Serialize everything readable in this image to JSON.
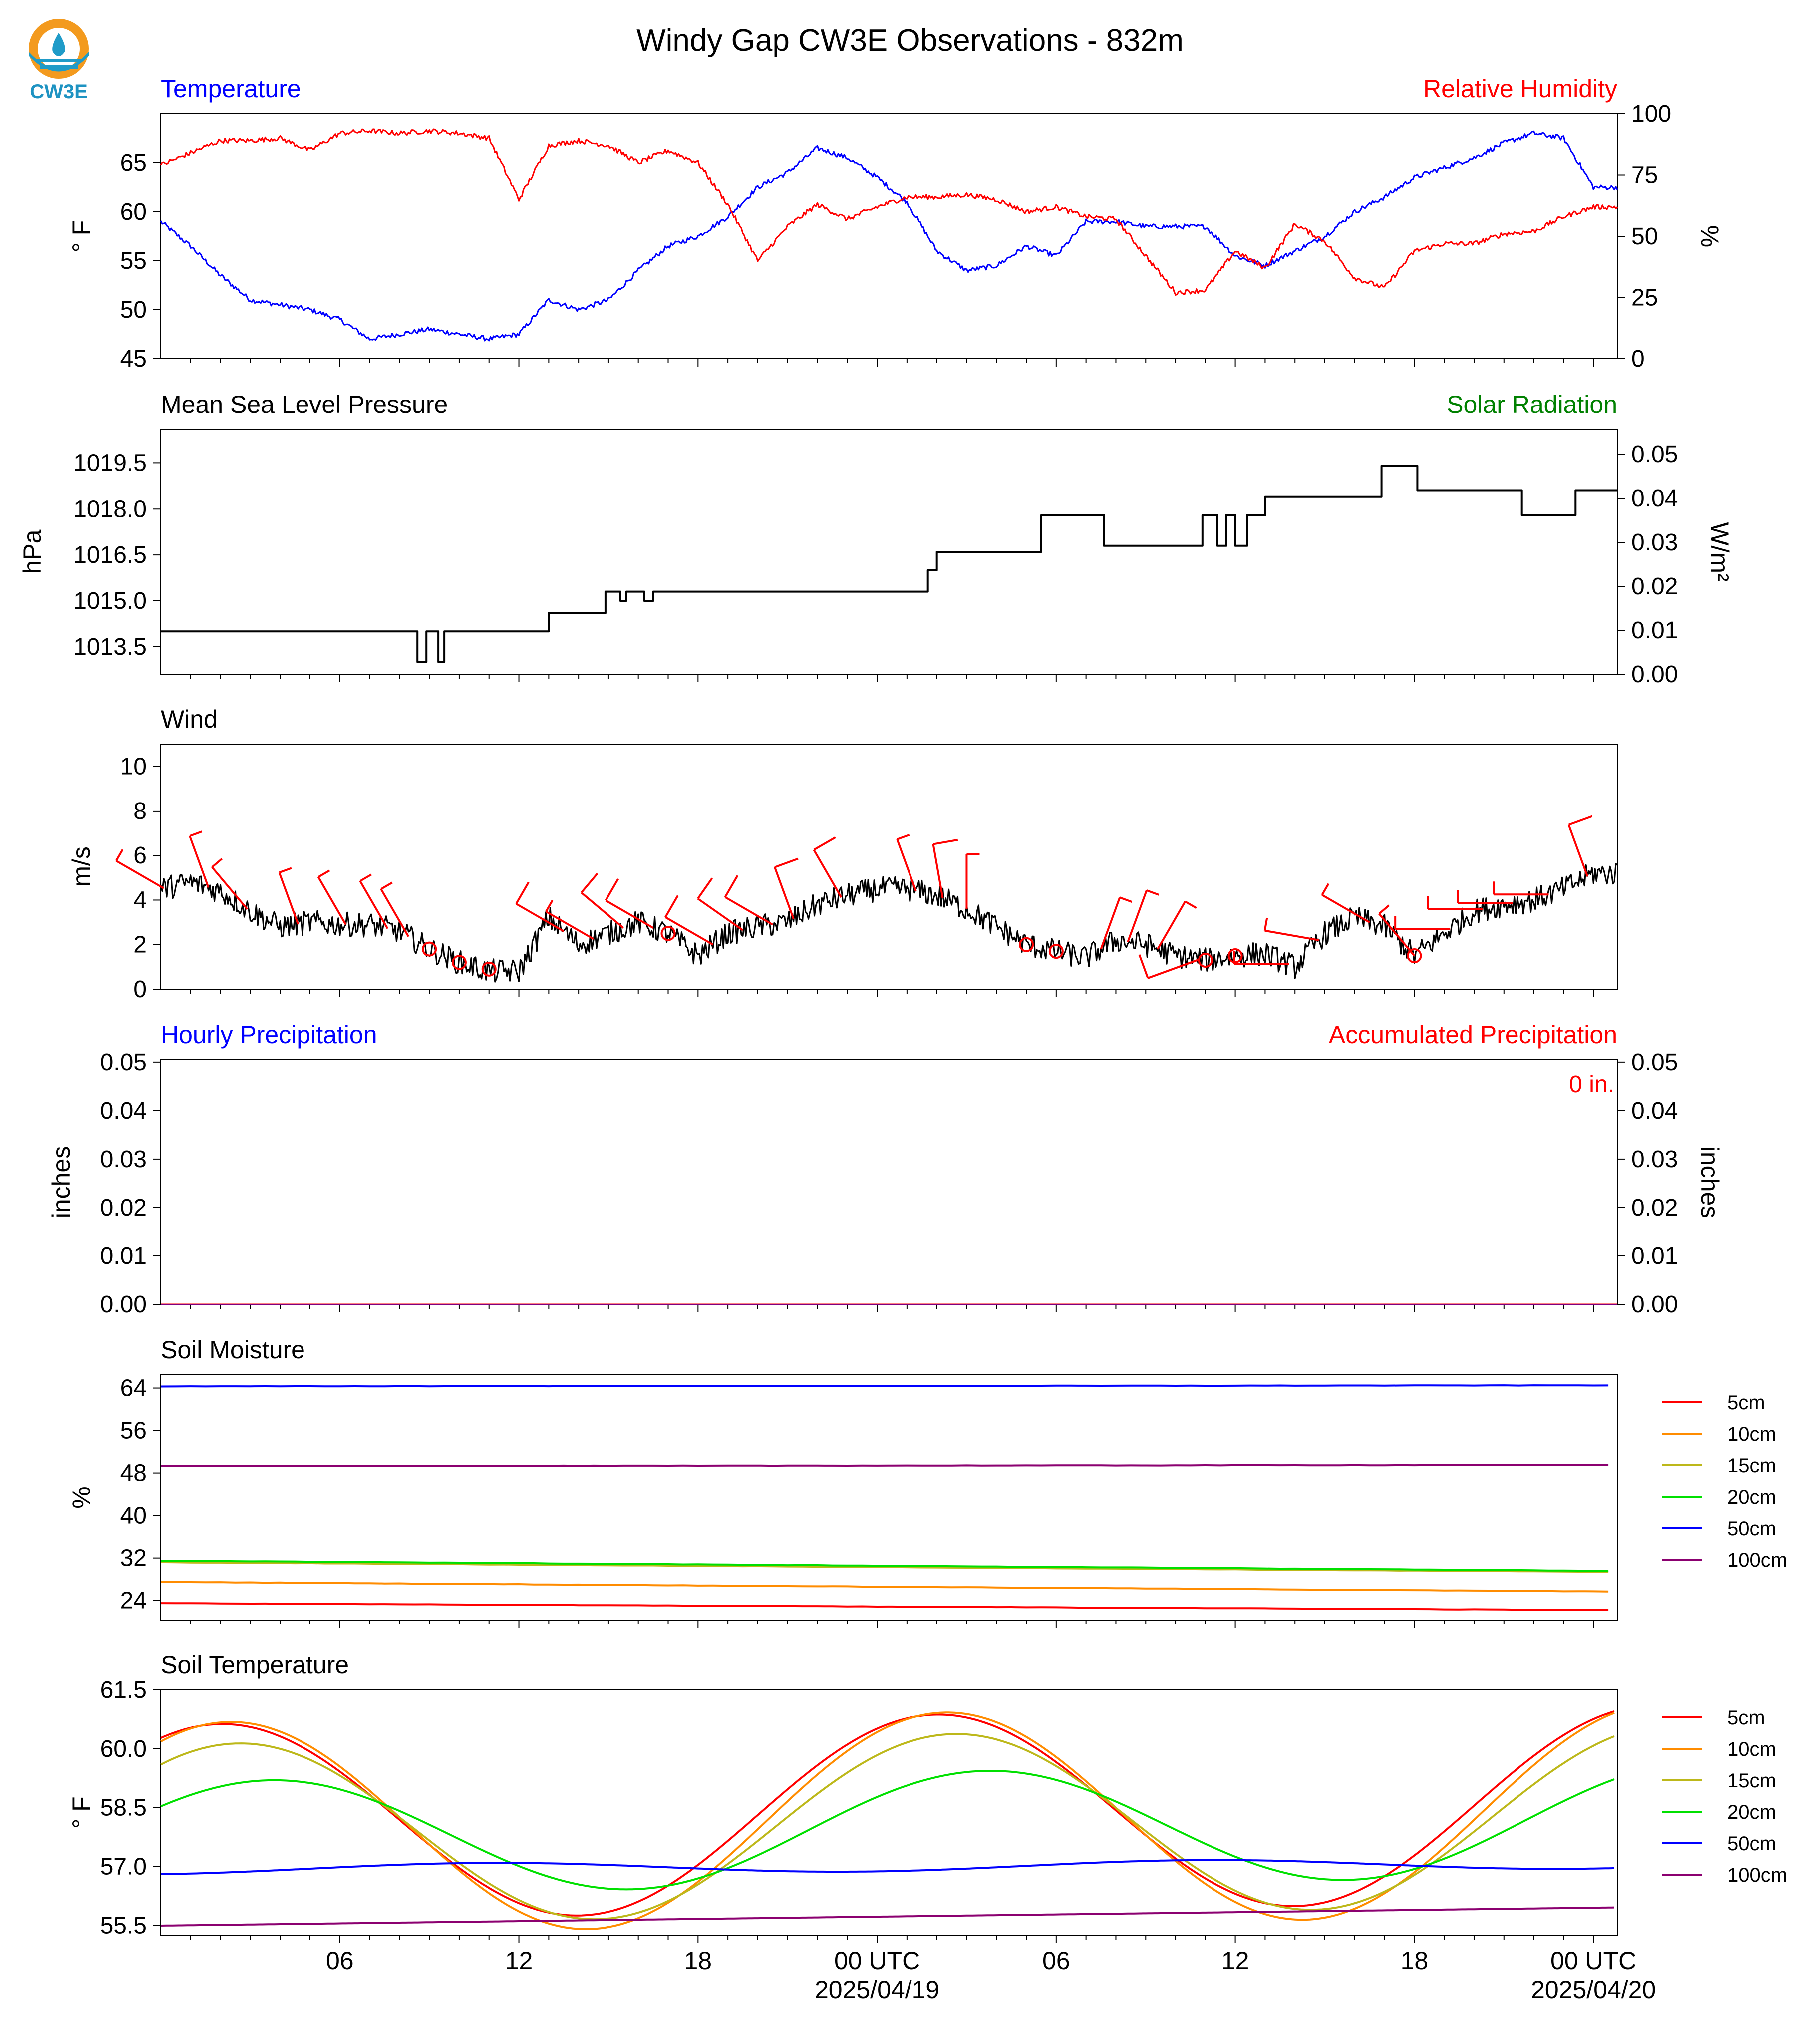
{
  "title": "Windy Gap CW3E Observations - 832m",
  "logo": {
    "text": "CW3E",
    "colors": {
      "ring": "#f39a1e",
      "water": "#1f9bc8",
      "text": "#1e93c2"
    }
  },
  "colors": {
    "blue": "#0000ff",
    "red": "#ff0000",
    "green": "#008000",
    "black": "#000000",
    "axis": "#000000"
  },
  "x_axis": {
    "ticks": [
      {
        "label": "06",
        "sublabel": ""
      },
      {
        "label": "12",
        "sublabel": ""
      },
      {
        "label": "18",
        "sublabel": ""
      },
      {
        "label": "00 UTC",
        "sublabel": "2025/04/19"
      },
      {
        "label": "06",
        "sublabel": ""
      },
      {
        "label": "12",
        "sublabel": ""
      },
      {
        "label": "18",
        "sublabel": ""
      },
      {
        "label": "00 UTC",
        "sublabel": "2025/04/20"
      }
    ]
  },
  "chart_data": [
    {
      "id": "temperature",
      "type": "line",
      "title_left": "Temperature",
      "title_right": "Relative Humidity",
      "ylabel": "° F",
      "ylabel_right": "%",
      "ylim": [
        45,
        70
      ],
      "ylim_right": [
        0,
        100
      ],
      "yticks": [
        45,
        50,
        55,
        60,
        65
      ],
      "yticks_right": [
        0,
        25,
        50,
        75,
        100
      ],
      "x_hours": [
        1,
        2,
        3,
        4,
        5,
        6,
        7,
        8,
        9,
        10,
        11,
        12,
        13,
        14,
        15,
        16,
        17,
        18,
        19,
        20,
        21,
        22,
        23,
        24,
        25,
        26,
        27,
        28,
        29,
        30,
        31,
        32,
        33,
        34,
        35,
        36,
        37,
        38,
        39,
        40,
        41,
        42,
        43,
        44,
        45,
        46,
        47,
        48,
        49
      ],
      "series": [
        {
          "name": "Temperature",
          "axis": "left",
          "color": "#0000ff",
          "values": [
            59,
            56.5,
            53.5,
            51,
            50.5,
            50,
            49,
            47,
            47.5,
            48,
            47.5,
            47,
            47.5,
            51,
            50,
            51,
            54,
            56.5,
            57.5,
            59.5,
            62.5,
            64,
            66.5,
            65.5,
            63.5,
            61,
            56,
            54,
            54.5,
            56.5,
            55.5,
            59,
            59,
            58.5,
            58.5,
            58.5,
            55.5,
            54.5,
            56,
            57.5,
            60,
            61.5,
            63.5,
            64.5,
            65.5,
            67,
            68,
            67.5,
            62.5
          ]
        },
        {
          "name": "Relative Humidity",
          "axis": "right",
          "color": "#ff0000",
          "values": [
            79,
            84,
            89,
            89,
            90,
            85,
            92,
            93,
            92,
            93,
            92,
            90,
            65,
            87,
            89,
            87,
            80,
            85,
            80,
            63,
            40,
            54,
            63,
            57,
            62,
            66,
            66,
            67,
            65,
            60,
            62,
            58,
            57,
            42,
            27,
            28,
            44,
            37,
            55,
            48,
            33,
            29,
            44,
            47,
            47,
            51,
            52,
            58,
            62
          ]
        }
      ]
    },
    {
      "id": "pressure",
      "type": "line",
      "title_left": "Mean Sea Level Pressure",
      "title_right": "Solar Radiation",
      "ylabel": "hPa",
      "ylabel_right": "W/m²",
      "ylim": [
        1012.6,
        1020.6
      ],
      "ylim_right": [
        0,
        0.0557
      ],
      "yticks": [
        1013.5,
        1015.0,
        1016.5,
        1018.0,
        1019.5
      ],
      "yticks_right": [
        0.0,
        0.01,
        0.02,
        0.03,
        0.04,
        0.05
      ],
      "series": [
        {
          "name": "Mean Sea Level Pressure",
          "axis": "left",
          "color": "#000000",
          "steps": [
            [
              0,
              1014.0
            ],
            [
              8.6,
              1013.0
            ],
            [
              8.9,
              1014.0
            ],
            [
              9.3,
              1013.0
            ],
            [
              9.5,
              1014.0
            ],
            [
              13,
              1014.6
            ],
            [
              14.9,
              1015.3
            ],
            [
              15.4,
              1015.0
            ],
            [
              15.6,
              1015.3
            ],
            [
              16.2,
              1015.0
            ],
            [
              16.5,
              1015.3
            ],
            [
              25.7,
              1016.0
            ],
            [
              26.0,
              1016.6
            ],
            [
              29.5,
              1017.8
            ],
            [
              31.6,
              1016.8
            ],
            [
              34.9,
              1017.8
            ],
            [
              35.4,
              1016.8
            ],
            [
              35.7,
              1017.8
            ],
            [
              36.0,
              1016.8
            ],
            [
              36.4,
              1017.8
            ],
            [
              37.0,
              1018.4
            ],
            [
              40.9,
              1019.4
            ],
            [
              42.1,
              1018.6
            ],
            [
              45.6,
              1017.8
            ],
            [
              47.4,
              1018.6
            ],
            [
              48.2,
              1018.6
            ]
          ]
        }
      ]
    },
    {
      "id": "wind",
      "type": "line",
      "title_left": "Wind",
      "ylabel": "m/s",
      "ylim": [
        0,
        11
      ],
      "yticks": [
        0,
        2,
        4,
        6,
        8,
        10
      ],
      "x_hours": [
        0,
        1,
        2,
        3,
        4,
        5,
        6,
        7,
        8,
        9,
        10,
        11,
        12,
        13,
        14,
        15,
        16,
        17,
        18,
        19,
        20,
        21,
        22,
        23,
        24,
        25,
        26,
        27,
        28,
        29,
        30,
        31,
        32,
        33,
        34,
        35,
        36,
        37,
        38,
        39,
        40,
        41,
        42,
        43,
        44,
        45,
        46,
        47,
        48
      ],
      "series": [
        {
          "name": "Wind speed",
          "color": "#000000",
          "values": [
            4.5,
            4.8,
            4.4,
            3.5,
            2.8,
            3.0,
            2.9,
            2.9,
            2.6,
            1.8,
            1.2,
            0.8,
            0.8,
            3.2,
            2.0,
            2.5,
            3.0,
            2.5,
            1.5,
            2.5,
            2.8,
            3.0,
            3.8,
            4.2,
            4.5,
            4.5,
            4.2,
            3.6,
            2.8,
            2.0,
            1.7,
            1.4,
            2.2,
            2.0,
            1.5,
            1.3,
            1.5,
            1.6,
            1.0,
            2.5,
            3.2,
            2.8,
            1.5,
            2.5,
            3.5,
            3.8,
            4.0,
            4.5,
            5.2
          ]
        }
      ],
      "barbs": {
        "color": "#ff0000",
        "calm_hours": [
          9,
          10,
          11,
          17,
          29,
          30,
          35,
          36,
          42
        ],
        "flags": [
          {
            "hour": 0.1,
            "speed": 5,
            "dir": 300
          },
          {
            "hour": 1.6,
            "speed": 5,
            "dir": 340
          },
          {
            "hour": 2.9,
            "speed": 5,
            "dir": 320
          },
          {
            "hour": 4.6,
            "speed": 5,
            "dir": 340
          },
          {
            "hour": 6.2,
            "speed": 5,
            "dir": 330
          },
          {
            "hour": 7.6,
            "speed": 5,
            "dir": 330
          },
          {
            "hour": 8.3,
            "speed": 5,
            "dir": 330
          },
          {
            "hour": 13.5,
            "speed": 10,
            "dir": 300
          },
          {
            "hour": 14.5,
            "speed": 5,
            "dir": 300
          },
          {
            "hour": 15.5,
            "speed": 10,
            "dir": 310
          },
          {
            "hour": 16.5,
            "speed": 10,
            "dir": 300
          },
          {
            "hour": 18.5,
            "speed": 10,
            "dir": 300
          },
          {
            "hour": 19.5,
            "speed": 10,
            "dir": 305
          },
          {
            "hour": 20.5,
            "speed": 10,
            "dir": 300
          },
          {
            "hour": 21.2,
            "speed": 10,
            "dir": 340
          },
          {
            "hour": 22.8,
            "speed": 10,
            "dir": 330
          },
          {
            "hour": 25.3,
            "speed": 5,
            "dir": 340
          },
          {
            "hour": 26.2,
            "speed": 10,
            "dir": 350
          },
          {
            "hour": 27.0,
            "speed": 5,
            "dir": 0
          },
          {
            "hour": 31.5,
            "speed": 5,
            "dir": 20
          },
          {
            "hour": 32.4,
            "speed": 5,
            "dir": 20
          },
          {
            "hour": 33.4,
            "speed": 5,
            "dir": 30
          },
          {
            "hour": 34.8,
            "speed": 10,
            "dir": 250
          },
          {
            "hour": 37.8,
            "speed": 5,
            "dir": 270
          },
          {
            "hour": 38.8,
            "speed": 5,
            "dir": 280
          },
          {
            "hour": 40.5,
            "speed": 5,
            "dir": 300
          },
          {
            "hour": 42.0,
            "speed": 5,
            "dir": 320
          },
          {
            "hour": 43.2,
            "speed": 5,
            "dir": 270
          },
          {
            "hour": 44.3,
            "speed": 5,
            "dir": 270
          },
          {
            "hour": 45.3,
            "speed": 5,
            "dir": 270
          },
          {
            "hour": 46.5,
            "speed": 5,
            "dir": 270
          },
          {
            "hour": 47.8,
            "speed": 10,
            "dir": 340
          }
        ]
      }
    },
    {
      "id": "precip",
      "type": "line",
      "title_left": "Hourly Precipitation",
      "title_right": "Accumulated Precipitation",
      "ylabel": "inches",
      "ylabel_right": "inches",
      "annotation": "0 in.",
      "ylim": [
        0,
        0.0505
      ],
      "yticks": [
        0.0,
        0.01,
        0.02,
        0.03,
        0.04,
        0.05
      ],
      "series": [
        {
          "name": "Hourly Precipitation",
          "color": "#0000ff",
          "values": [
            0,
            0
          ]
        },
        {
          "name": "Accumulated Precipitation",
          "color": "#ff0000",
          "values": [
            0,
            0
          ]
        }
      ]
    },
    {
      "id": "soil_moisture",
      "type": "line",
      "title_left": "Soil Moisture",
      "ylabel": "%",
      "ylim": [
        20.3,
        66.5
      ],
      "yticks": [
        24,
        32,
        40,
        48,
        56,
        64
      ],
      "legend": "right",
      "x_hours": [
        0,
        48
      ],
      "series": [
        {
          "name": "5cm",
          "color": "#ff0000",
          "values": [
            23.5,
            22.2
          ]
        },
        {
          "name": "10cm",
          "color": "#ff8c00",
          "values": [
            27.5,
            25.7
          ]
        },
        {
          "name": "15cm",
          "color": "#bdb81a",
          "values": [
            31.2,
            29.4
          ]
        },
        {
          "name": "20cm",
          "color": "#00e000",
          "values": [
            31.5,
            29.6
          ]
        },
        {
          "name": "50cm",
          "color": "#0000ff",
          "values": [
            64.3,
            64.5
          ]
        },
        {
          "name": "100cm",
          "color": "#8b0070",
          "values": [
            49.3,
            49.5
          ]
        }
      ]
    },
    {
      "id": "soil_temperature",
      "type": "line",
      "title_left": "Soil Temperature",
      "ylabel": "° F",
      "ylim": [
        55.25,
        61.5
      ],
      "yticks": [
        55.5,
        57.0,
        58.5,
        60.0,
        61.5
      ],
      "legend": "right",
      "series": [
        {
          "name": "5cm",
          "color": "#ff0000",
          "mean": 58.35,
          "amp": 2.5,
          "peak_hour": 2.0,
          "trend": 0.01
        },
        {
          "name": "10cm",
          "color": "#ff8c00",
          "mean": 58.2,
          "amp": 2.7,
          "peak_hour": 2.3,
          "trend": 0.01
        },
        {
          "name": "15cm",
          "color": "#bdb81a",
          "mean": 58.05,
          "amp": 2.3,
          "peak_hour": 2.6,
          "trend": 0.01
        },
        {
          "name": "20cm",
          "color": "#00e000",
          "mean": 57.95,
          "amp": 1.45,
          "peak_hour": 3.7,
          "trend": 0.01
        },
        {
          "name": "50cm",
          "color": "#0000ff",
          "mean": 57.0,
          "amp": 0.13,
          "peak_hour": 11.0,
          "trend": 0.003
        },
        {
          "name": "100cm",
          "color": "#8b0070",
          "mean": 55.72,
          "amp": 0.0,
          "peak_hour": 0,
          "trend": 0.0095
        }
      ]
    }
  ]
}
